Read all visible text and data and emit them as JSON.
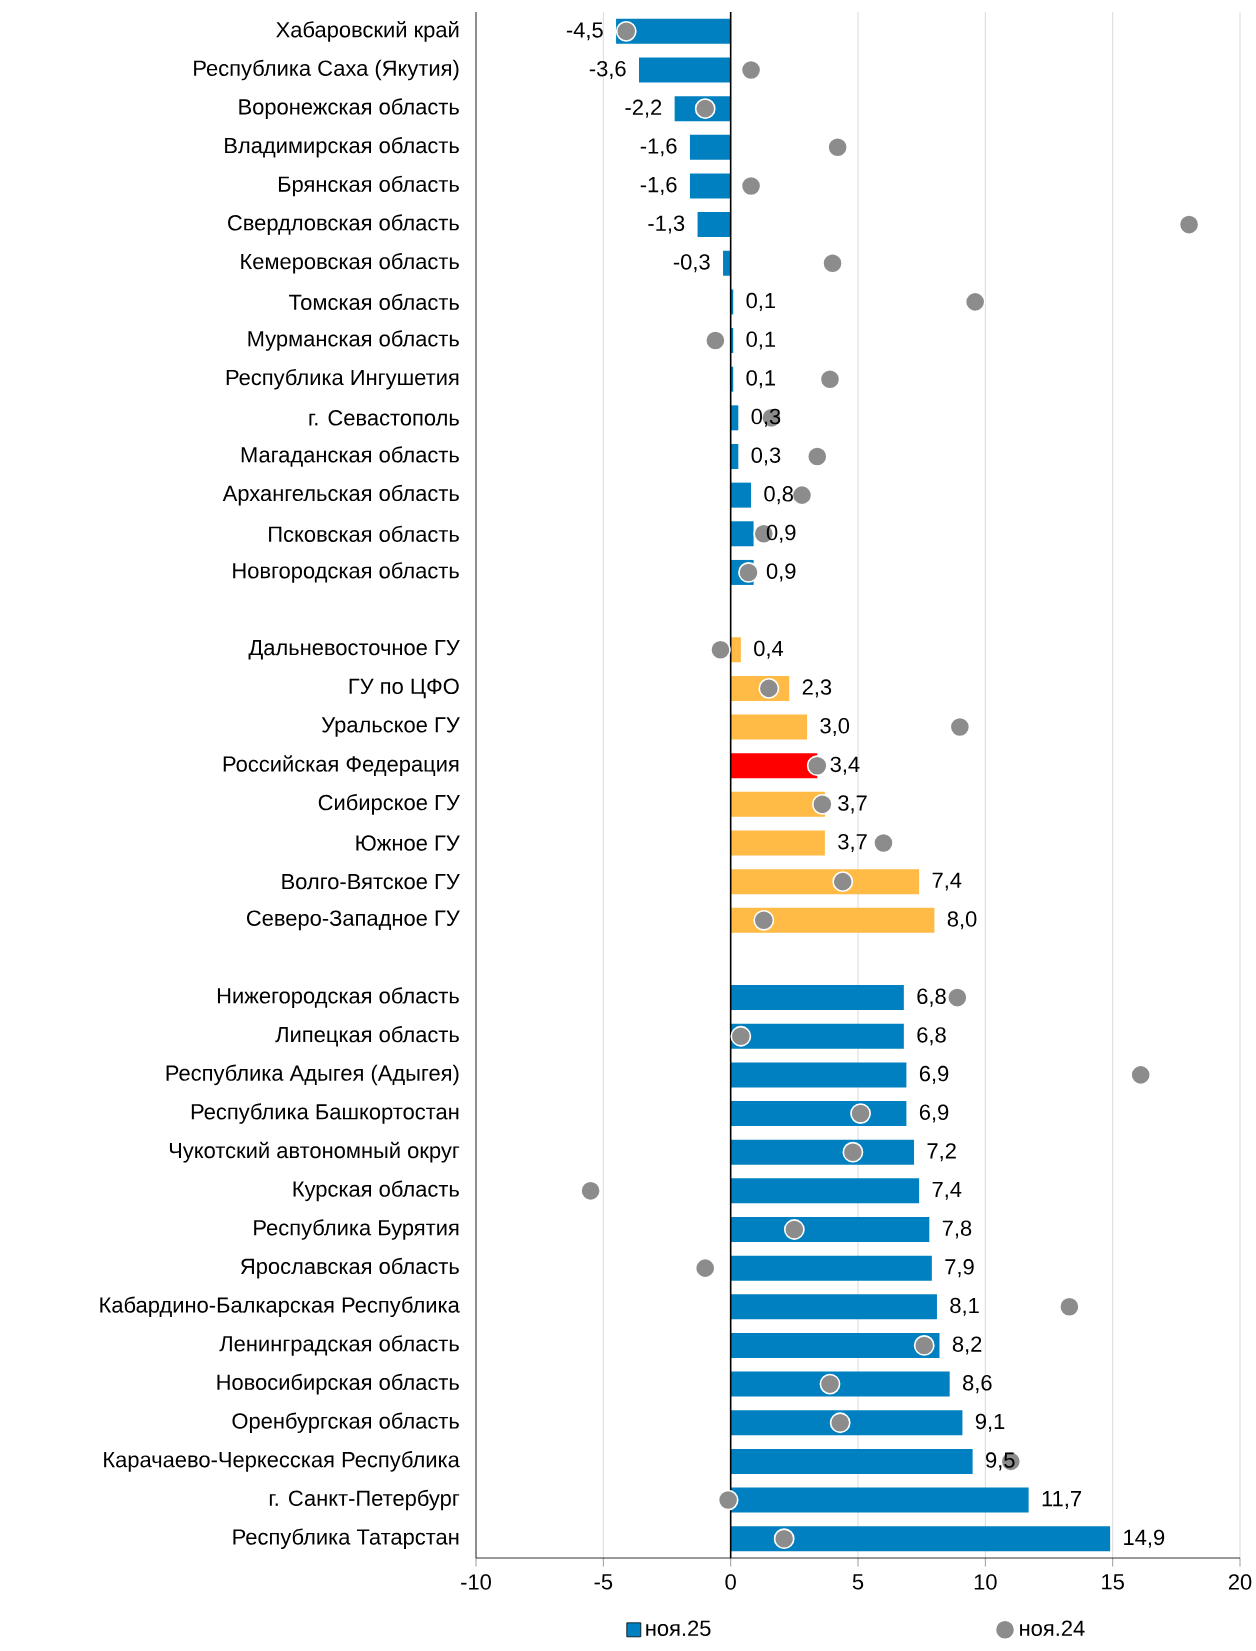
{
  "chart_data": {
    "type": "bar",
    "orientation": "horizontal",
    "categories": [
      "Хабаровский край",
      "Республика Саха (Якутия)",
      "Воронежская область",
      "Владимирская область",
      "Брянская область",
      "Свердловская область",
      "Кемеровская область",
      "Томская область",
      "Мурманская область",
      "Республика Ингушетия",
      "г. Севастополь",
      "Магаданская область",
      "Архангельская область",
      "Псковская область",
      "Новгородская область",
      null,
      "Дальневосточное ГУ",
      "ГУ по ЦФО",
      "Уральское ГУ",
      "Российская Федерация",
      "Сибирское ГУ",
      "Южное ГУ",
      "Волго-Вятское ГУ",
      "Северо-Западное ГУ",
      null,
      "Нижегородская область",
      "Липецкая область",
      "Республика Адыгея (Адыгея)",
      "Республика Башкортостан",
      "Чукотский автономный округ",
      "Курская область",
      "Республика Бурятия",
      "Ярославская область",
      "Кабардино-Балкарская Республика",
      "Ленинградская область",
      "Новосибирская область",
      "Оренбургская область",
      "Карачаево-Черкесская Республика",
      "г. Санкт-Петербург",
      "Республика Татарстан"
    ],
    "series": [
      {
        "name": "ноя.25",
        "color": "#0080c0",
        "colors": [
          "#0080c0",
          "#0080c0",
          "#0080c0",
          "#0080c0",
          "#0080c0",
          "#0080c0",
          "#0080c0",
          "#0080c0",
          "#0080c0",
          "#0080c0",
          "#0080c0",
          "#0080c0",
          "#0080c0",
          "#0080c0",
          "#0080c0",
          null,
          "#ffbb45",
          "#ffbb45",
          "#ffbb45",
          "#ff0000",
          "#ffbb45",
          "#ffbb45",
          "#ffbb45",
          "#ffbb45",
          null,
          "#0080c0",
          "#0080c0",
          "#0080c0",
          "#0080c0",
          "#0080c0",
          "#0080c0",
          "#0080c0",
          "#0080c0",
          "#0080c0",
          "#0080c0",
          "#0080c0",
          "#0080c0",
          "#0080c0",
          "#0080c0",
          "#0080c0"
        ],
        "values": [
          -4.5,
          -3.6,
          -2.2,
          -1.6,
          -1.6,
          -1.3,
          -0.3,
          0.1,
          0.1,
          0.1,
          0.3,
          0.3,
          0.8,
          0.9,
          0.9,
          null,
          0.4,
          2.3,
          3.0,
          3.4,
          3.7,
          3.7,
          7.4,
          8.0,
          null,
          6.8,
          6.8,
          6.9,
          6.9,
          7.2,
          7.4,
          7.8,
          7.9,
          8.1,
          8.2,
          8.6,
          9.1,
          9.5,
          11.7,
          14.9
        ],
        "value_labels": [
          "-4,5",
          "-3,6",
          "-2,2",
          "-1,6",
          "-1,6",
          "-1,3",
          "-0,3",
          "0,1",
          "0,1",
          "0,1",
          "0,3",
          "0,3",
          "0,8",
          "0,9",
          "0,9",
          null,
          "0,4",
          "2,3",
          "3,0",
          "3,4",
          "3,7",
          "3,7",
          "7,4",
          "8,0",
          null,
          "6,8",
          "6,8",
          "6,9",
          "6,9",
          "7,2",
          "7,4",
          "7,8",
          "7,9",
          "8,1",
          "8,2",
          "8,6",
          "9,1",
          "9,5",
          "11,7",
          "14,9"
        ]
      },
      {
        "name": "ноя.24",
        "type": "scatter",
        "marker": "circle",
        "color": "#8c8c8c",
        "values": [
          -4.1,
          0.8,
          -1.0,
          4.2,
          0.8,
          18.0,
          4.0,
          9.6,
          -0.6,
          3.9,
          1.6,
          3.4,
          2.8,
          1.3,
          0.7,
          null,
          -0.4,
          1.5,
          9.0,
          3.4,
          3.6,
          6.0,
          4.4,
          1.3,
          null,
          8.9,
          0.4,
          16.1,
          5.1,
          4.8,
          -5.5,
          2.5,
          -1.0,
          13.3,
          7.6,
          3.9,
          4.3,
          11.0,
          -0.1,
          2.1
        ]
      }
    ],
    "xlim": [
      -10,
      20
    ],
    "xticks": [
      -10,
      -5,
      0,
      5,
      10,
      15,
      20
    ],
    "grid": "x",
    "legend": "bottom"
  }
}
